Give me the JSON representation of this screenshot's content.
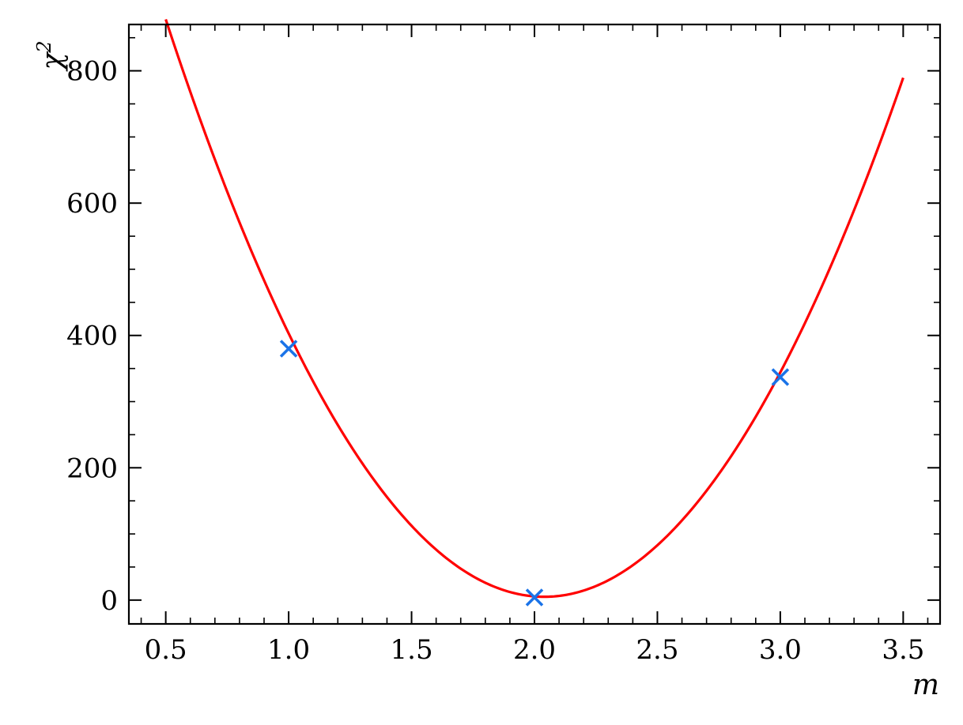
{
  "chart_data": {
    "type": "line",
    "xlabel": "m",
    "ylabel": "χ",
    "ylabel_superscript": "2",
    "xlim": [
      0.35,
      3.65
    ],
    "ylim": [
      -36,
      870
    ],
    "x_ticks": [
      0.5,
      1.0,
      1.5,
      2.0,
      2.5,
      3.0,
      3.5
    ],
    "x_tick_labels": [
      "0.5",
      "1.0",
      "1.5",
      "2.0",
      "2.5",
      "3.0",
      "3.5"
    ],
    "y_ticks": [
      0,
      200,
      400,
      600,
      800
    ],
    "y_tick_labels": [
      "0",
      "200",
      "400",
      "600",
      "800"
    ],
    "grid": false,
    "series": [
      {
        "kind": "line",
        "color": "#ff0000",
        "x_start": 0.5,
        "x_end": 3.5,
        "curve": "quadratic",
        "coefficients": {
          "a": 368,
          "h": 2.04,
          "k": 5
        }
      },
      {
        "kind": "scatter",
        "marker": "x",
        "color": "#1a73e8",
        "x": [
          1.0,
          2.0,
          3.0
        ],
        "y": [
          380,
          4,
          337
        ]
      }
    ]
  }
}
